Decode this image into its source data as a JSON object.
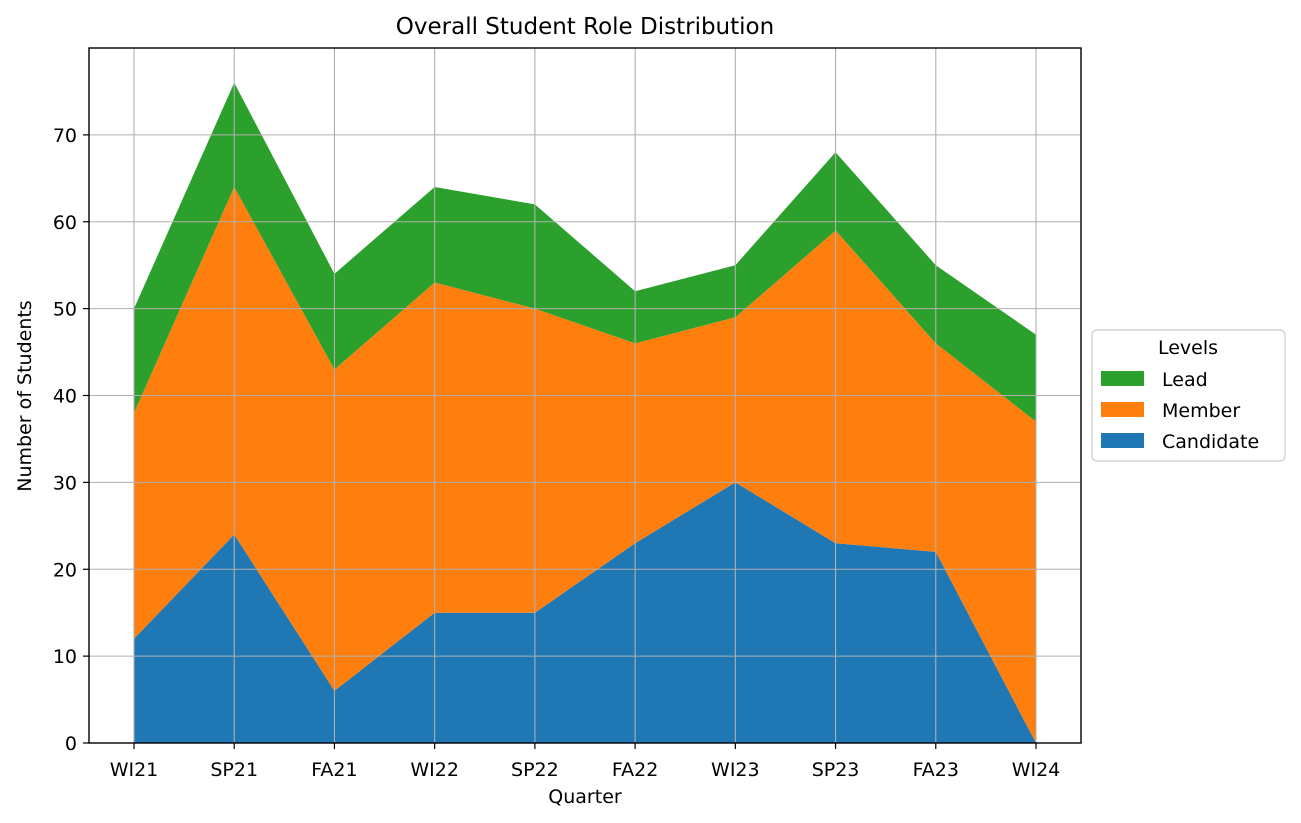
{
  "chart_data": {
    "type": "area",
    "stacked": true,
    "title": "Overall Student Role Distribution",
    "xlabel": "Quarter",
    "ylabel": "Number of Students",
    "categories": [
      "WI21",
      "SP21",
      "FA21",
      "WI22",
      "SP22",
      "FA22",
      "WI23",
      "SP23",
      "FA23",
      "WI24"
    ],
    "series": [
      {
        "name": "Candidate",
        "color": "#1f77b4",
        "values": [
          12,
          24,
          6,
          15,
          15,
          23,
          30,
          23,
          22,
          0
        ]
      },
      {
        "name": "Member",
        "color": "#ff7f0e",
        "values": [
          26,
          40,
          37,
          38,
          35,
          23,
          19,
          36,
          24,
          37
        ]
      },
      {
        "name": "Lead",
        "color": "#2ca02c",
        "values": [
          12,
          12,
          11,
          11,
          12,
          6,
          6,
          9,
          9,
          10
        ]
      }
    ],
    "ylim": [
      0,
      80
    ],
    "yticks": [
      0,
      10,
      20,
      30,
      40,
      50,
      60,
      70
    ],
    "grid": true,
    "legend": {
      "title": "Levels",
      "placement": "right-outside",
      "entries": [
        "Lead",
        "Member",
        "Candidate"
      ]
    }
  }
}
